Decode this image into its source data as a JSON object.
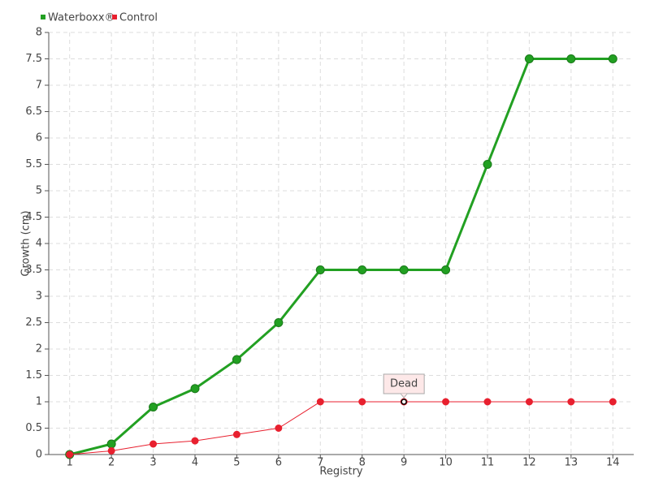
{
  "chart_data": {
    "type": "line",
    "x_label": "Registry",
    "y_label": "Growth (cm)",
    "categories": [
      "1",
      "2",
      "3",
      "4",
      "5",
      "6",
      "7",
      "8",
      "9",
      "10",
      "11",
      "12",
      "13",
      "14"
    ],
    "series": [
      {
        "name": "Waterboxx®",
        "color": "#22a022",
        "values": [
          0,
          0.2,
          0.9,
          1.25,
          1.8,
          2.5,
          3.5,
          3.5,
          3.5,
          3.5,
          5.5,
          7.5,
          7.5,
          7.5
        ]
      },
      {
        "name": "Control",
        "color": "#e8202f",
        "values": [
          0,
          0.07,
          0.2,
          0.26,
          0.38,
          0.5,
          1,
          1,
          1,
          1,
          1,
          1,
          1,
          1
        ]
      }
    ],
    "annotations": [
      {
        "label": "Dead",
        "x": "9",
        "series": "Control"
      }
    ],
    "ylim": [
      0,
      8
    ],
    "yticks": [
      0,
      0.5,
      1,
      1.5,
      2,
      2.5,
      3,
      3.5,
      4,
      4.5,
      5,
      5.5,
      6,
      6.5,
      7,
      7.5,
      8
    ],
    "grid": true,
    "legend": "top-left"
  }
}
